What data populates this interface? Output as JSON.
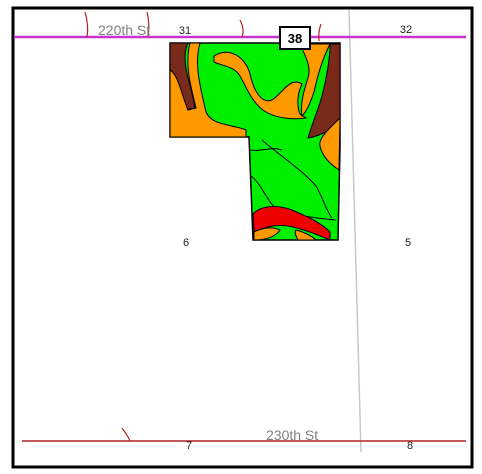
{
  "roads": {
    "north": {
      "name": "220th St",
      "color": "#cc33cc"
    },
    "south": {
      "name": "230th St",
      "color": "#b22222"
    }
  },
  "highway_shield": {
    "number": "38"
  },
  "sections": {
    "nw": "31",
    "ne": "32",
    "w": "6",
    "e": "5",
    "sw": "7",
    "se": "8"
  },
  "field_colors": {
    "green": "#00ee00",
    "orange": "#ff9900",
    "brown": "#7a2a1a",
    "red": "#ee0000",
    "outline": "#000000"
  },
  "colors": {
    "frame": "#000000",
    "section_line": "#c8c8c8",
    "drainage": "#b22222"
  }
}
